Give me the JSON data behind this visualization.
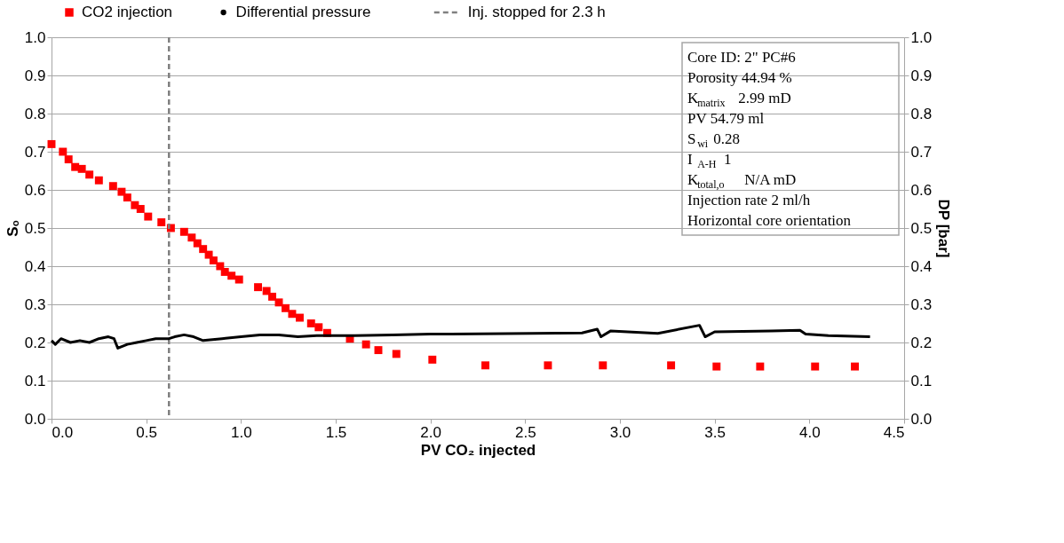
{
  "chart_data": {
    "type": "scatter",
    "xlabel": "PV CO₂ injected",
    "ylabel": "Sₒ",
    "y2label": "DP [bar]",
    "xlim": [
      0,
      4.5
    ],
    "ylim": [
      0,
      1
    ],
    "y2lim": [
      0,
      1
    ],
    "xticks": [
      {
        "value": 0,
        "label": "0.0"
      },
      {
        "value": 0.5,
        "label": "0.5"
      },
      {
        "value": 1,
        "label": "1.0"
      },
      {
        "value": 1.5,
        "label": "1.5"
      },
      {
        "value": 2,
        "label": "2.0"
      },
      {
        "value": 2.5,
        "label": "2.5"
      },
      {
        "value": 3,
        "label": "3.0"
      },
      {
        "value": 3.5,
        "label": "3.5"
      },
      {
        "value": 4,
        "label": "4.0"
      },
      {
        "value": 4.5,
        "label": "4.5"
      }
    ],
    "yticks": [
      {
        "value": 0,
        "label": "0.0"
      },
      0.1,
      0.2,
      0.3,
      0.4,
      0.5,
      0.6,
      0.7,
      0.8,
      0.9,
      {
        "value": 1,
        "label": "1.0"
      }
    ],
    "y2ticks": [
      {
        "value": 0,
        "label": "0.0"
      },
      0.1,
      0.2,
      0.3,
      0.4,
      0.5,
      0.6,
      0.7,
      0.8,
      0.9,
      {
        "value": 1,
        "label": "1.0"
      }
    ],
    "grid": "y",
    "legend": "top",
    "series": [
      {
        "name": "CO2 injection",
        "color": "#ff0000",
        "marker": "square",
        "x": [
          0.0,
          0.06,
          0.09,
          0.125,
          0.16,
          0.2,
          0.25,
          0.325,
          0.37,
          0.4,
          0.44,
          0.47,
          0.51,
          0.58,
          0.63,
          0.7,
          0.74,
          0.77,
          0.8,
          0.83,
          0.855,
          0.89,
          0.915,
          0.95,
          0.99,
          1.09,
          1.135,
          1.165,
          1.2,
          1.235,
          1.27,
          1.31,
          1.37,
          1.41,
          1.455,
          1.575,
          1.66,
          1.725,
          1.82,
          2.01,
          2.29,
          2.62,
          2.91,
          3.27,
          3.51,
          3.74,
          4.03,
          4.24
        ],
        "values": [
          0.72,
          0.7,
          0.68,
          0.66,
          0.655,
          0.64,
          0.625,
          0.61,
          0.595,
          0.58,
          0.56,
          0.55,
          0.53,
          0.515,
          0.5,
          0.49,
          0.475,
          0.46,
          0.445,
          0.43,
          0.415,
          0.4,
          0.385,
          0.375,
          0.365,
          0.345,
          0.335,
          0.32,
          0.305,
          0.29,
          0.275,
          0.265,
          0.25,
          0.24,
          0.225,
          0.21,
          0.195,
          0.18,
          0.17,
          0.155,
          0.14,
          0.14,
          0.14,
          0.14,
          0.137,
          0.137,
          0.137,
          0.137
        ]
      },
      {
        "name": "Differential pressure",
        "type": "line",
        "axis": "y2",
        "color": "#000000",
        "line_style": "solid",
        "x": [
          0,
          0.02,
          0.05,
          0.1,
          0.15,
          0.2,
          0.25,
          0.3,
          0.33,
          0.35,
          0.4,
          0.45,
          0.5,
          0.55,
          0.62,
          0.65,
          0.7,
          0.75,
          0.8,
          0.9,
          1.0,
          1.1,
          1.2,
          1.3,
          1.4,
          1.6,
          1.8,
          2.0,
          2.4,
          2.8,
          2.88,
          2.9,
          2.95,
          3.2,
          3.42,
          3.45,
          3.5,
          3.8,
          3.95,
          3.98,
          4.1,
          4.32
        ],
        "values": [
          0.205,
          0.195,
          0.21,
          0.2,
          0.205,
          0.2,
          0.21,
          0.215,
          0.21,
          0.185,
          0.195,
          0.2,
          0.205,
          0.21,
          0.21,
          0.215,
          0.22,
          0.215,
          0.205,
          0.21,
          0.215,
          0.22,
          0.22,
          0.215,
          0.218,
          0.218,
          0.22,
          0.222,
          0.223,
          0.225,
          0.235,
          0.215,
          0.23,
          0.224,
          0.245,
          0.215,
          0.228,
          0.23,
          0.232,
          0.222,
          0.218,
          0.215
        ]
      }
    ],
    "ref_lines": [
      {
        "axis": "x",
        "value": 0.62,
        "label": "Inj. stopped for 2.3 h",
        "color": "#808080",
        "line_style": "dashed"
      }
    ],
    "annotations": [
      "Core ID: 2\" PC#6",
      "Porosity 44.94 %",
      "K$_{matrix}$ 2.99 mD",
      "PV 54.79 ml",
      "S$_{wi}$ 0.28",
      "I$_{A-H}$ 1",
      "K$_{total,o}$ N/A mD",
      "Injection rate 2 ml/h",
      "Horizontal core orientation"
    ]
  }
}
